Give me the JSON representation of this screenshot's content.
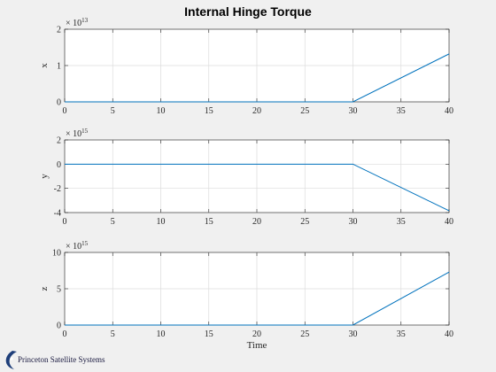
{
  "figure": {
    "background": "#f0f0f0",
    "title": "Internal Hinge Torque",
    "logo_text": "Princeton Satellite Systems",
    "logo_color": "#1f3f7a"
  },
  "chart_data": [
    {
      "type": "line",
      "title": "Internal Hinge Torque",
      "xlabel": "",
      "ylabel": "x",
      "exponent_base": "× 10",
      "exponent": "13",
      "xlim": [
        0,
        40
      ],
      "ylim": [
        0,
        2
      ],
      "xticks": [
        "0",
        "5",
        "10",
        "15",
        "20",
        "25",
        "30",
        "35",
        "40"
      ],
      "yticks": [
        "0",
        "1",
        "2"
      ],
      "ytick_values": [
        0,
        1,
        2
      ],
      "grid": true,
      "color": "#0072bd",
      "series": [
        {
          "x": [
            0,
            30,
            40
          ],
          "y": [
            0,
            0,
            1.32
          ]
        }
      ]
    },
    {
      "type": "line",
      "xlabel": "",
      "ylabel": "y",
      "exponent_base": "× 10",
      "exponent": "15",
      "xlim": [
        0,
        40
      ],
      "ylim": [
        -4,
        2
      ],
      "xticks": [
        "0",
        "5",
        "10",
        "15",
        "20",
        "25",
        "30",
        "35",
        "40"
      ],
      "yticks": [
        "-4",
        "-2",
        "0",
        "2"
      ],
      "ytick_values": [
        -4,
        -2,
        0,
        2
      ],
      "grid": true,
      "color": "#0072bd",
      "series": [
        {
          "x": [
            0,
            30,
            40
          ],
          "y": [
            0,
            0,
            -3.85
          ]
        }
      ]
    },
    {
      "type": "line",
      "xlabel": "Time",
      "ylabel": "z",
      "exponent_base": "× 10",
      "exponent": "15",
      "xlim": [
        0,
        40
      ],
      "ylim": [
        0,
        10
      ],
      "xticks": [
        "0",
        "5",
        "10",
        "15",
        "20",
        "25",
        "30",
        "35",
        "40"
      ],
      "yticks": [
        "0",
        "5",
        "10"
      ],
      "ytick_values": [
        0,
        5,
        10
      ],
      "grid": true,
      "color": "#0072bd",
      "series": [
        {
          "x": [
            0,
            30,
            40
          ],
          "y": [
            0,
            0,
            7.3
          ]
        }
      ]
    }
  ]
}
